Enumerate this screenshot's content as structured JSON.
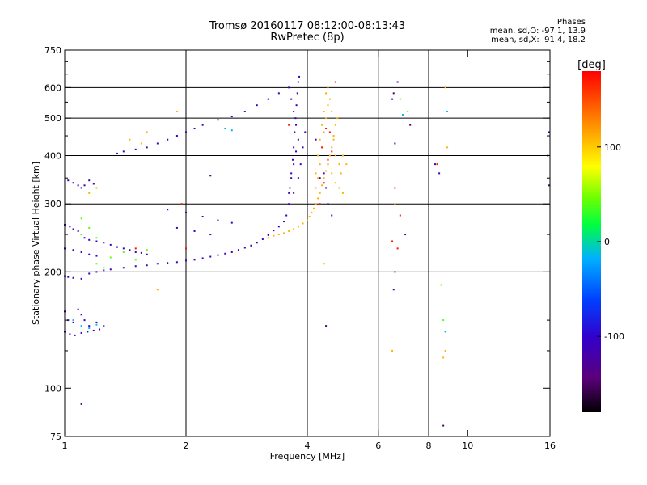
{
  "header": {
    "title_line1": "Tromsø 20160117 08:12:00-08:13:43",
    "title_line2": "RwPretec (8p)",
    "phases_title": "Phases",
    "phases_O": "mean, sd,O: -97.1, 13.9",
    "phases_X": "mean, sd,X:  91.4, 18.2"
  },
  "chart_data": {
    "type": "scatter",
    "title": "Tromsø 20160117 08:12:00-08:13:43",
    "subtitle": "RwPretec (8p)",
    "xlabel": "Frequency [MHz]",
    "ylabel": "Stationary phase Virtual Height [km]",
    "x_scale": "log",
    "y_scale": "log",
    "xlim": [
      1,
      16
    ],
    "ylim": [
      75,
      750
    ],
    "x_ticks": [
      1,
      2,
      4,
      6,
      8,
      10,
      16
    ],
    "y_ticks": [
      75,
      100,
      200,
      300,
      400,
      500,
      600,
      750
    ],
    "x_gridlines": [
      2,
      4,
      6,
      8
    ],
    "y_gridlines": [
      200,
      300,
      400,
      500,
      600
    ],
    "grid": true,
    "colorbar": {
      "label": "[deg]",
      "min": -180,
      "max": 180,
      "ticks": [
        100,
        0,
        -100
      ],
      "colormap": "rainbow (black-violet-blue-cyan-green-yellow-red)"
    },
    "series": [
      {
        "color_value": -110,
        "points": [
          [
            1.0,
            265
          ],
          [
            1.03,
            262
          ],
          [
            1.05,
            258
          ],
          [
            1.08,
            255
          ],
          [
            1.1,
            250
          ],
          [
            1.12,
            245
          ],
          [
            1.15,
            242
          ],
          [
            1.2,
            240
          ],
          [
            1.25,
            238
          ],
          [
            1.3,
            235
          ],
          [
            1.35,
            232
          ],
          [
            1.4,
            230
          ],
          [
            1.45,
            228
          ],
          [
            1.5,
            225
          ],
          [
            1.55,
            224
          ],
          [
            1.6,
            222
          ],
          [
            1.0,
            230
          ],
          [
            1.05,
            228
          ],
          [
            1.1,
            225
          ],
          [
            1.15,
            222
          ],
          [
            1.2,
            220
          ],
          [
            1.0,
            195
          ],
          [
            1.02,
            194
          ],
          [
            1.05,
            193
          ],
          [
            1.1,
            192
          ],
          [
            1.15,
            198
          ],
          [
            1.2,
            200
          ],
          [
            1.25,
            202
          ],
          [
            1.3,
            203
          ],
          [
            1.4,
            205
          ],
          [
            1.5,
            207
          ],
          [
            1.6,
            208
          ],
          [
            1.7,
            210
          ],
          [
            1.8,
            211
          ],
          [
            1.9,
            212
          ],
          [
            2.0,
            214
          ],
          [
            2.1,
            215
          ],
          [
            2.2,
            217
          ],
          [
            2.3,
            219
          ],
          [
            2.4,
            221
          ],
          [
            2.5,
            223
          ],
          [
            2.6,
            225
          ],
          [
            2.7,
            228
          ],
          [
            2.8,
            231
          ],
          [
            2.9,
            234
          ],
          [
            3.0,
            238
          ],
          [
            3.1,
            243
          ],
          [
            3.2,
            249
          ],
          [
            3.3,
            256
          ],
          [
            3.4,
            262
          ],
          [
            3.5,
            270
          ],
          [
            3.55,
            280
          ],
          [
            3.6,
            300
          ],
          [
            3.62,
            330
          ],
          [
            3.65,
            360
          ],
          [
            3.68,
            390
          ],
          [
            3.7,
            420
          ],
          [
            3.72,
            460
          ],
          [
            3.74,
            500
          ],
          [
            3.76,
            540
          ],
          [
            3.78,
            580
          ],
          [
            3.8,
            620
          ],
          [
            3.82,
            640
          ],
          [
            3.6,
            320
          ],
          [
            3.65,
            350
          ],
          [
            3.7,
            380
          ],
          [
            3.75,
            410
          ],
          [
            3.8,
            440
          ],
          [
            3.7,
            320
          ],
          [
            3.8,
            350
          ],
          [
            3.85,
            380
          ],
          [
            3.9,
            420
          ],
          [
            3.95,
            460
          ],
          [
            3.75,
            480
          ],
          [
            3.7,
            520
          ],
          [
            3.65,
            560
          ],
          [
            3.6,
            600
          ],
          [
            3.4,
            580
          ],
          [
            3.2,
            560
          ],
          [
            3.0,
            540
          ],
          [
            2.8,
            520
          ],
          [
            2.6,
            505
          ],
          [
            2.4,
            495
          ],
          [
            2.2,
            480
          ],
          [
            2.1,
            470
          ],
          [
            2.0,
            460
          ],
          [
            1.9,
            450
          ],
          [
            1.8,
            440
          ],
          [
            1.7,
            430
          ],
          [
            1.6,
            420
          ],
          [
            1.5,
            415
          ],
          [
            1.4,
            410
          ],
          [
            1.35,
            405
          ],
          [
            1.02,
            345
          ],
          [
            1.05,
            340
          ],
          [
            1.08,
            335
          ],
          [
            1.1,
            330
          ],
          [
            1.12,
            335
          ],
          [
            1.15,
            345
          ],
          [
            1.18,
            338
          ],
          [
            1.0,
            158
          ],
          [
            1.02,
            150
          ],
          [
            1.05,
            148
          ],
          [
            1.08,
            160
          ],
          [
            1.1,
            155
          ],
          [
            1.12,
            150
          ],
          [
            1.0,
            140
          ],
          [
            1.03,
            138
          ],
          [
            1.06,
            137
          ],
          [
            1.1,
            139
          ],
          [
            1.14,
            140
          ],
          [
            1.18,
            141
          ],
          [
            1.22,
            142
          ],
          [
            1.25,
            145
          ],
          [
            1.2,
            148
          ],
          [
            1.15,
            145
          ],
          [
            1.8,
            290
          ],
          [
            2.0,
            285
          ],
          [
            2.2,
            278
          ],
          [
            2.4,
            272
          ],
          [
            2.6,
            268
          ],
          [
            1.9,
            260
          ],
          [
            2.1,
            255
          ],
          [
            2.3,
            250
          ],
          [
            4.3,
            350
          ],
          [
            4.4,
            360
          ],
          [
            4.45,
            330
          ],
          [
            4.5,
            300
          ],
          [
            4.6,
            280
          ],
          [
            6.5,
            560
          ],
          [
            6.7,
            620
          ],
          [
            6.6,
            430
          ],
          [
            7.0,
            250
          ],
          [
            8.3,
            380
          ],
          [
            8.5,
            360
          ],
          [
            15.8,
            400
          ],
          [
            15.9,
            460
          ],
          [
            4.5,
            380
          ],
          [
            4.2,
            440
          ],
          [
            6.6,
            200
          ],
          [
            6.55,
            180
          ]
        ]
      },
      {
        "color_value": 110,
        "points": [
          [
            3.2,
            245
          ],
          [
            3.3,
            248
          ],
          [
            3.4,
            250
          ],
          [
            3.5,
            252
          ],
          [
            3.6,
            255
          ],
          [
            3.7,
            258
          ],
          [
            3.8,
            262
          ],
          [
            3.9,
            267
          ],
          [
            4.0,
            272
          ],
          [
            4.05,
            278
          ],
          [
            4.1,
            285
          ],
          [
            4.15,
            292
          ],
          [
            4.2,
            300
          ],
          [
            4.25,
            310
          ],
          [
            4.3,
            320
          ],
          [
            4.35,
            335
          ],
          [
            4.4,
            350
          ],
          [
            4.45,
            365
          ],
          [
            4.5,
            380
          ],
          [
            4.55,
            400
          ],
          [
            4.6,
            420
          ],
          [
            4.65,
            450
          ],
          [
            4.7,
            480
          ],
          [
            4.75,
            500
          ],
          [
            4.3,
            380
          ],
          [
            4.35,
            420
          ],
          [
            4.4,
            460
          ],
          [
            4.45,
            500
          ],
          [
            4.5,
            540
          ],
          [
            4.55,
            560
          ],
          [
            4.6,
            520
          ],
          [
            4.65,
            440
          ],
          [
            4.7,
            400
          ],
          [
            4.8,
            380
          ],
          [
            4.85,
            360
          ],
          [
            4.9,
            400
          ],
          [
            4.2,
            360
          ],
          [
            4.25,
            400
          ],
          [
            4.3,
            440
          ],
          [
            4.35,
            480
          ],
          [
            4.4,
            520
          ],
          [
            4.45,
            580
          ],
          [
            4.5,
            600
          ],
          [
            4.2,
            330
          ],
          [
            4.25,
            350
          ],
          [
            4.6,
            360
          ],
          [
            4.7,
            340
          ],
          [
            4.8,
            330
          ],
          [
            4.9,
            320
          ],
          [
            5.0,
            380
          ],
          [
            1.9,
            520
          ],
          [
            1.6,
            460
          ],
          [
            1.55,
            430
          ],
          [
            1.45,
            440
          ],
          [
            1.2,
            330
          ],
          [
            1.15,
            320
          ],
          [
            1.7,
            180
          ],
          [
            4.4,
            210
          ],
          [
            6.5,
            125
          ],
          [
            6.6,
            300
          ],
          [
            8.8,
            600
          ],
          [
            8.9,
            420
          ],
          [
            8.8,
            125
          ],
          [
            8.7,
            120
          ]
        ]
      },
      {
        "color_value": 175,
        "points": [
          [
            4.3,
            300
          ],
          [
            4.4,
            340
          ],
          [
            4.5,
            390
          ],
          [
            4.6,
            410
          ],
          [
            4.55,
            460
          ],
          [
            4.45,
            470
          ],
          [
            4.35,
            420
          ],
          [
            4.7,
            620
          ],
          [
            6.5,
            240
          ],
          [
            6.6,
            330
          ],
          [
            6.7,
            230
          ],
          [
            6.8,
            280
          ],
          [
            1.95,
            300
          ],
          [
            2.0,
            230
          ],
          [
            1.5,
            230
          ],
          [
            3.6,
            480
          ],
          [
            8.4,
            380
          ]
        ]
      },
      {
        "color_value": 40,
        "points": [
          [
            1.1,
            250
          ],
          [
            1.15,
            260
          ],
          [
            1.2,
            245
          ],
          [
            1.3,
            218
          ],
          [
            1.4,
            225
          ],
          [
            1.2,
            210
          ],
          [
            1.25,
            205
          ],
          [
            1.5,
            215
          ],
          [
            1.6,
            228
          ],
          [
            8.6,
            185
          ],
          [
            8.7,
            150
          ],
          [
            8.8,
            140
          ],
          [
            6.8,
            560
          ],
          [
            7.1,
            520
          ],
          [
            1.1,
            275
          ]
        ]
      },
      {
        "color_value": -15,
        "points": [
          [
            1.05,
            150
          ],
          [
            1.1,
            145
          ],
          [
            1.15,
            143
          ],
          [
            1.2,
            146
          ],
          [
            2.5,
            470
          ],
          [
            2.6,
            465
          ],
          [
            8.9,
            520
          ],
          [
            6.9,
            510
          ],
          [
            8.8,
            140
          ]
        ]
      },
      {
        "color_value": -150,
        "points": [
          [
            1.1,
            91
          ],
          [
            4.45,
            145
          ],
          [
            8.7,
            80
          ],
          [
            15.9,
            335
          ],
          [
            7.2,
            480
          ],
          [
            2.3,
            355
          ],
          [
            6.55,
            580
          ]
        ]
      }
    ]
  }
}
